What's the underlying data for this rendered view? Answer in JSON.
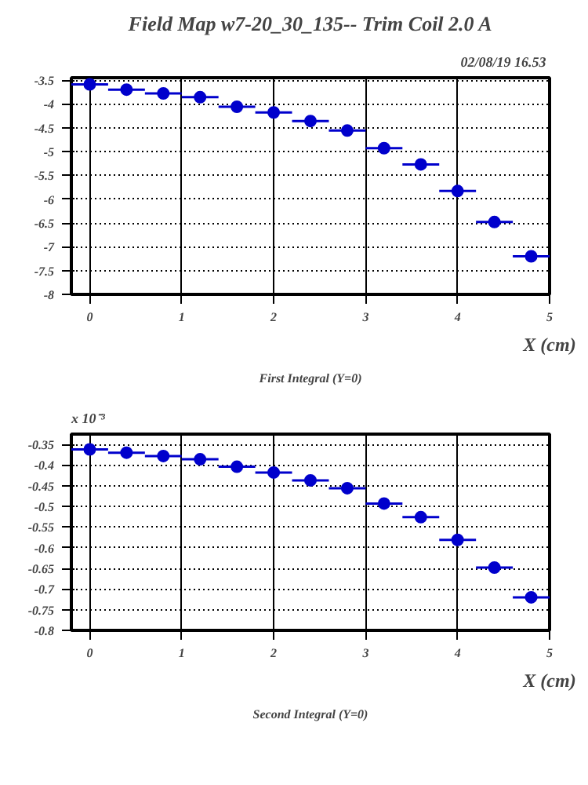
{
  "chart_data": [
    {
      "type": "scatter",
      "title": "Field Map w7-20_30_135-- Trim Coil 2.0 A",
      "xlabel": "X (cm)",
      "annotations": [
        "02/08/19  16.53",
        "First Integral (Y=0)"
      ],
      "x": [
        0,
        0.4,
        0.8,
        1.2,
        1.6,
        2.0,
        2.4,
        2.8,
        3.2,
        3.6,
        4.0,
        4.4,
        4.8
      ],
      "series": [
        {
          "color": "#0000cc",
          "values": [
            -3.59,
            -3.7,
            -3.78,
            -3.86,
            -4.06,
            -4.18,
            -4.36,
            -4.56,
            -4.93,
            -5.27,
            -5.83,
            -6.48,
            -7.2
          ],
          "xerrors": [
            0.2,
            0.2,
            0.2,
            0.2,
            0.2,
            0.2,
            0.2,
            0.2,
            0.2,
            0.2,
            0.2,
            0.2,
            0.2
          ]
        }
      ],
      "xlim": [
        -0.2,
        5
      ],
      "xticks": [
        0,
        1,
        2,
        3,
        4,
        5
      ],
      "ylim": [
        -8,
        -3.45
      ],
      "yticks": [
        -8,
        -7.5,
        -7,
        -6.5,
        -6,
        -5.5,
        -5,
        -4.5,
        -4,
        -3.5
      ],
      "grid": true,
      "marker": "circle"
    },
    {
      "type": "scatter",
      "xlabel": "X (cm)",
      "annotations": [
        "x 10⁻³",
        "Second Integral (Y=0)"
      ],
      "x": [
        0,
        0.4,
        0.8,
        1.2,
        1.6,
        2.0,
        2.4,
        2.8,
        3.2,
        3.6,
        4.0,
        4.4,
        4.8
      ],
      "series": [
        {
          "color": "#0000cc",
          "values": [
            -0.362,
            -0.37,
            -0.378,
            -0.386,
            -0.404,
            -0.418,
            -0.437,
            -0.456,
            -0.493,
            -0.526,
            -0.581,
            -0.648,
            -0.72
          ],
          "xerrors": [
            0.2,
            0.2,
            0.2,
            0.2,
            0.2,
            0.2,
            0.2,
            0.2,
            0.2,
            0.2,
            0.2,
            0.2,
            0.2
          ]
        }
      ],
      "xlim": [
        -0.2,
        5
      ],
      "xticks": [
        0,
        1,
        2,
        3,
        4,
        5
      ],
      "ylim": [
        -0.8,
        -0.325
      ],
      "yticks": [
        -0.8,
        -0.75,
        -0.7,
        -0.65,
        -0.6,
        -0.55,
        -0.5,
        -0.45,
        -0.4,
        -0.35
      ],
      "grid": true,
      "marker": "circle"
    }
  ]
}
